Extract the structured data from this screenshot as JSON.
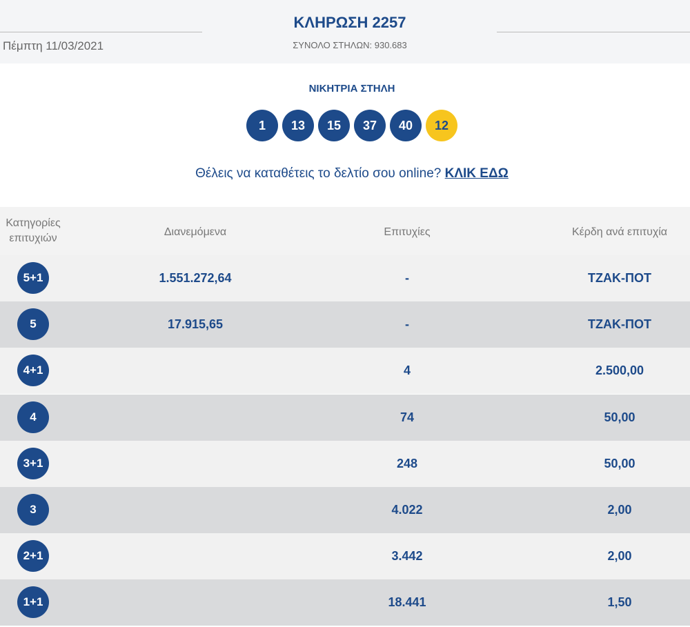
{
  "header": {
    "title": "ΚΛΗΡΩΣΗ 2257",
    "date": "Πέμπτη 11/03/2021",
    "total": "ΣΥΝΟΛΟ ΣΤΗΛΩΝ: 930.683"
  },
  "winning": {
    "label": "ΝΙΚΗΤΡΙΑ ΣΤΗΛΗ",
    "numbers": [
      "1",
      "13",
      "15",
      "37",
      "40"
    ],
    "joker": "12"
  },
  "prompt": {
    "text": "Θέλεις να καταθέτεις το δελτίο σου online?",
    "link": "ΚΛΙΚ ΕΔΩ"
  },
  "table": {
    "headers": [
      "Κατηγορίες επιτυχιών",
      "Διανεμόμενα",
      "Επιτυχίες",
      "Κέρδη ανά επιτυχία"
    ],
    "rows": [
      {
        "category": "5+1",
        "distributed": "1.551.272,64",
        "winners": "-",
        "prize": "ΤΖΑΚ-ΠΟΤ"
      },
      {
        "category": "5",
        "distributed": "17.915,65",
        "winners": "-",
        "prize": "ΤΖΑΚ-ΠΟΤ"
      },
      {
        "category": "4+1",
        "winners": "4",
        "prize": "2.500,00"
      },
      {
        "category": "4",
        "winners": "74",
        "prize": "50,00"
      },
      {
        "category": "3+1",
        "winners": "248",
        "prize": "50,00"
      },
      {
        "category": "3",
        "winners": "4.022",
        "prize": "2,00"
      },
      {
        "category": "2+1",
        "winners": "3.442",
        "prize": "2,00"
      },
      {
        "category": "1+1",
        "winners": "18.441",
        "prize": "1,50"
      }
    ]
  }
}
